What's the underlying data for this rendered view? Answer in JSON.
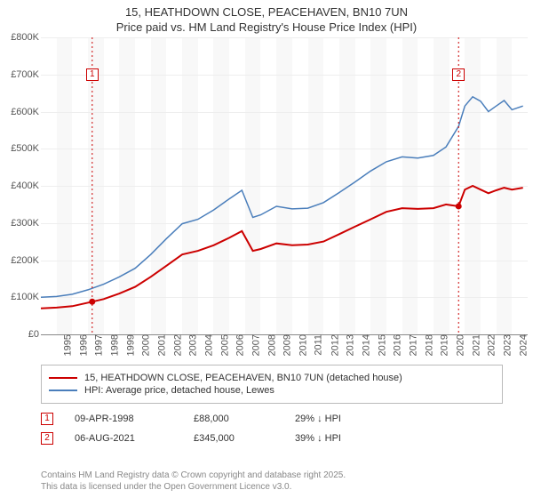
{
  "title_line1": "15, HEATHDOWN CLOSE, PEACEHAVEN, BN10 7UN",
  "title_line2": "Price paid vs. HM Land Registry's House Price Index (HPI)",
  "chart": {
    "type": "line",
    "background_color": "#ffffff",
    "plot_band_color": "#f8f8f8",
    "grid_color": "#eeeeee",
    "axis_color": "#888888",
    "ylim": [
      0,
      800000
    ],
    "ytick_step": 100000,
    "y_tick_labels": [
      "£0",
      "£100K",
      "£200K",
      "£300K",
      "£400K",
      "£500K",
      "£600K",
      "£700K",
      "£800K"
    ],
    "xlim": [
      1995,
      2026
    ],
    "x_ticks": [
      1995,
      1996,
      1997,
      1998,
      1999,
      2000,
      2001,
      2002,
      2003,
      2004,
      2005,
      2006,
      2007,
      2008,
      2009,
      2010,
      2011,
      2012,
      2013,
      2014,
      2015,
      2016,
      2017,
      2018,
      2019,
      2020,
      2021,
      2022,
      2023,
      2024,
      2025
    ],
    "label_fontsize": 11,
    "title_fontsize": 13,
    "series": [
      {
        "name": "price_paid",
        "label": "15, HEATHDOWN CLOSE, PEACEHAVEN, BN10 7UN (detached house)",
        "color": "#cc0000",
        "line_width": 2,
        "data": [
          [
            1995,
            70000
          ],
          [
            1996,
            72000
          ],
          [
            1997,
            76000
          ],
          [
            1998.27,
            88000
          ],
          [
            1999,
            95000
          ],
          [
            2000,
            110000
          ],
          [
            2001,
            128000
          ],
          [
            2002,
            155000
          ],
          [
            2003,
            185000
          ],
          [
            2004,
            215000
          ],
          [
            2005,
            225000
          ],
          [
            2006,
            240000
          ],
          [
            2007,
            260000
          ],
          [
            2007.8,
            278000
          ],
          [
            2008.5,
            225000
          ],
          [
            2009,
            230000
          ],
          [
            2010,
            245000
          ],
          [
            2011,
            240000
          ],
          [
            2012,
            242000
          ],
          [
            2013,
            250000
          ],
          [
            2014,
            270000
          ],
          [
            2015,
            290000
          ],
          [
            2016,
            310000
          ],
          [
            2017,
            330000
          ],
          [
            2018,
            340000
          ],
          [
            2019,
            338000
          ],
          [
            2020,
            340000
          ],
          [
            2020.8,
            350000
          ],
          [
            2021.6,
            345000
          ],
          [
            2022,
            390000
          ],
          [
            2022.5,
            400000
          ],
          [
            2023,
            390000
          ],
          [
            2023.5,
            380000
          ],
          [
            2024,
            388000
          ],
          [
            2024.5,
            395000
          ],
          [
            2025,
            390000
          ],
          [
            2025.7,
            395000
          ]
        ]
      },
      {
        "name": "hpi",
        "label": "HPI: Average price, detached house, Lewes",
        "color": "#4a7ebb",
        "line_width": 1.5,
        "data": [
          [
            1995,
            100000
          ],
          [
            1996,
            102000
          ],
          [
            1997,
            108000
          ],
          [
            1998,
            120000
          ],
          [
            1999,
            135000
          ],
          [
            2000,
            155000
          ],
          [
            2001,
            178000
          ],
          [
            2002,
            215000
          ],
          [
            2003,
            258000
          ],
          [
            2004,
            298000
          ],
          [
            2005,
            310000
          ],
          [
            2006,
            335000
          ],
          [
            2007,
            365000
          ],
          [
            2007.8,
            388000
          ],
          [
            2008.5,
            315000
          ],
          [
            2009,
            322000
          ],
          [
            2010,
            345000
          ],
          [
            2011,
            338000
          ],
          [
            2012,
            340000
          ],
          [
            2013,
            355000
          ],
          [
            2014,
            382000
          ],
          [
            2015,
            410000
          ],
          [
            2016,
            440000
          ],
          [
            2017,
            465000
          ],
          [
            2018,
            478000
          ],
          [
            2019,
            475000
          ],
          [
            2020,
            482000
          ],
          [
            2020.8,
            505000
          ],
          [
            2021.6,
            560000
          ],
          [
            2022,
            615000
          ],
          [
            2022.5,
            640000
          ],
          [
            2023,
            628000
          ],
          [
            2023.5,
            600000
          ],
          [
            2024,
            615000
          ],
          [
            2024.5,
            630000
          ],
          [
            2025,
            605000
          ],
          [
            2025.7,
            615000
          ]
        ]
      }
    ],
    "markers": [
      {
        "n": "1",
        "x": 1998.27,
        "y": 88000,
        "color": "#cc0000",
        "label_y": 700000
      },
      {
        "n": "2",
        "x": 2021.6,
        "y": 345000,
        "color": "#cc0000",
        "label_y": 700000
      }
    ]
  },
  "legend": {
    "border_color": "#bbbbbb"
  },
  "transactions": [
    {
      "n": "1",
      "color": "#cc0000",
      "date": "09-APR-1998",
      "price": "£88,000",
      "diff": "29% ↓ HPI"
    },
    {
      "n": "2",
      "color": "#cc0000",
      "date": "06-AUG-2021",
      "price": "£345,000",
      "diff": "39% ↓ HPI"
    }
  ],
  "credits_line1": "Contains HM Land Registry data © Crown copyright and database right 2025.",
  "credits_line2": "This data is licensed under the Open Government Licence v3.0."
}
